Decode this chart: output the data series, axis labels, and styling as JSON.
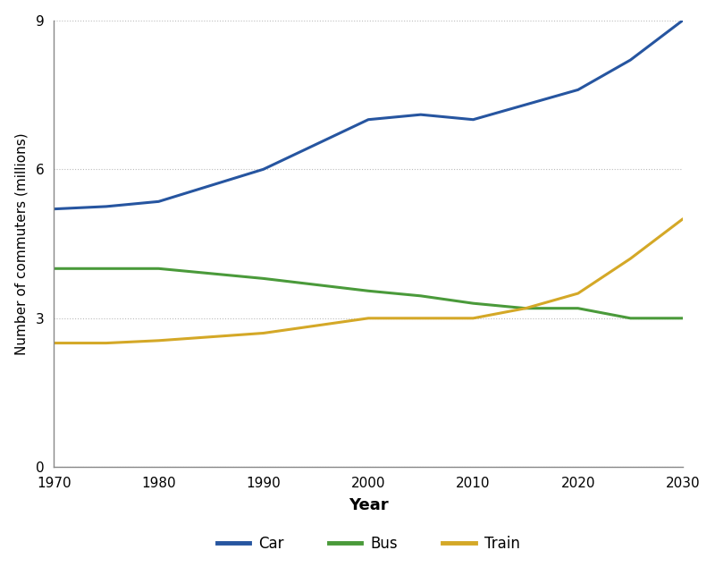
{
  "years": [
    1970,
    1975,
    1980,
    1990,
    2000,
    2005,
    2010,
    2015,
    2020,
    2025,
    2030
  ],
  "car": [
    5.2,
    5.25,
    5.35,
    6.0,
    7.0,
    7.1,
    7.0,
    7.3,
    7.6,
    8.2,
    9.0
  ],
  "bus": [
    4.0,
    4.0,
    4.0,
    3.8,
    3.55,
    3.45,
    3.3,
    3.2,
    3.2,
    3.0,
    3.0
  ],
  "train": [
    2.5,
    2.5,
    2.55,
    2.7,
    3.0,
    3.0,
    3.0,
    3.2,
    3.5,
    4.2,
    5.0
  ],
  "car_color": "#2655a0",
  "bus_color": "#4a9a3a",
  "train_color": "#d4a827",
  "xlabel": "Year",
  "ylabel": "Number of commuters (millions)",
  "xlim": [
    1970,
    2030
  ],
  "ylim": [
    0,
    9
  ],
  "yticks": [
    0,
    3,
    6,
    9
  ],
  "xticks": [
    1970,
    1980,
    1990,
    2000,
    2010,
    2020,
    2030
  ],
  "legend_labels": [
    "Car",
    "Bus",
    "Train"
  ],
  "linewidth": 2.2,
  "background_color": "#ffffff",
  "grid_color": "#bbbbbb",
  "spine_color": "#888888"
}
